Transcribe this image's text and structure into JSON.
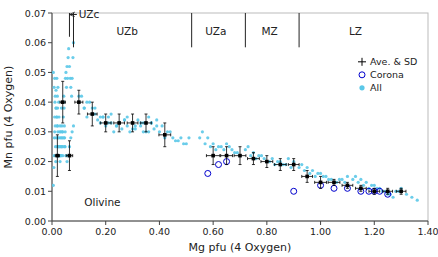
{
  "chart_data": {
    "type": "scatter",
    "x_label": "Mg pfu (4 Oxygen)",
    "y_label": "Mn pfu (4 Oxygen)",
    "xlim": [
      0,
      1.4
    ],
    "ylim": [
      0,
      0.07
    ],
    "xticks": [
      {
        "value": 0.0,
        "label": "0.00"
      },
      {
        "value": 0.2,
        "label": "0.20"
      },
      {
        "value": 0.4,
        "label": "0.40"
      },
      {
        "value": 0.6,
        "label": "0.60"
      },
      {
        "value": 0.8,
        "label": "0.80"
      },
      {
        "value": 1.0,
        "label": "1.00"
      },
      {
        "value": 1.2,
        "label": "1.20"
      },
      {
        "value": 1.4,
        "label": "1.40"
      }
    ],
    "yticks": [
      {
        "value": 0.0,
        "label": "0.00"
      },
      {
        "value": 0.01,
        "label": "0.01"
      },
      {
        "value": 0.02,
        "label": "0.02"
      },
      {
        "value": 0.03,
        "label": "0.03"
      },
      {
        "value": 0.04,
        "label": "0.04"
      },
      {
        "value": 0.05,
        "label": "0.05"
      },
      {
        "value": 0.06,
        "label": "0.06"
      },
      {
        "value": 0.07,
        "label": "0.07"
      }
    ],
    "grid": false,
    "legend": "upper right",
    "zone_boundaries": [
      0.08,
      0.52,
      0.72,
      0.92
    ],
    "zone_labels": [
      {
        "text": "UZb",
        "x": 0.28,
        "y": 0.06405
      },
      {
        "text": "UZa",
        "x": 0.61,
        "y": 0.06405
      },
      {
        "text": "MZ",
        "x": 0.81,
        "y": 0.06405
      },
      {
        "text": "LZ",
        "x": 1.13,
        "y": 0.06405
      }
    ],
    "annotations": [
      {
        "text": "UZc",
        "x": 0.1,
        "y": 0.0695,
        "arrow_x": 0.065,
        "arrow_y": 0.0695,
        "tick_y": [
          0.062,
          0.07
        ]
      },
      {
        "text": "Olivine",
        "x": 0.12,
        "y": 0.005
      }
    ],
    "series": [
      {
        "name": "Ave. & SD",
        "color": "black",
        "marker": "square",
        "x": [
          0.02,
          0.04,
          0.065,
          0.1,
          0.15,
          0.2,
          0.25,
          0.3,
          0.35,
          0.42,
          0.6,
          0.65,
          0.7,
          0.75,
          0.8,
          0.85,
          0.9,
          0.95,
          1.0,
          1.05,
          1.1,
          1.15,
          1.2,
          1.25,
          1.3
        ],
        "values": [
          0.022,
          0.04,
          0.022,
          0.04,
          0.036,
          0.033,
          0.033,
          0.033,
          0.033,
          0.029,
          0.022,
          0.022,
          0.022,
          0.021,
          0.02,
          0.019,
          0.019,
          0.015,
          0.013,
          0.013,
          0.012,
          0.011,
          0.01,
          0.01,
          0.01
        ],
        "x_err": [
          0.008,
          0.01,
          0.012,
          0.015,
          0.018,
          0.02,
          0.02,
          0.02,
          0.02,
          0.022,
          0.025,
          0.022,
          0.022,
          0.022,
          0.022,
          0.022,
          0.02,
          0.02,
          0.022,
          0.022,
          0.02,
          0.02,
          0.02,
          0.018,
          0.018
        ],
        "y_err": [
          0.007,
          0.007,
          0.005,
          0.004,
          0.004,
          0.003,
          0.003,
          0.003,
          0.003,
          0.004,
          0.003,
          0.003,
          0.003,
          0.002,
          0.002,
          0.002,
          0.002,
          0.002,
          0.002,
          0.001,
          0.001,
          0.001,
          0.001,
          0.001,
          0.001
        ]
      },
      {
        "name": "Corona",
        "color": "#0000cd",
        "marker": "open_circle",
        "x": [
          0.58,
          0.62,
          0.65,
          0.9,
          1.0,
          1.05,
          1.1,
          1.15,
          1.18,
          1.2,
          1.22,
          1.25
        ],
        "values": [
          0.016,
          0.019,
          0.02,
          0.01,
          0.012,
          0.011,
          0.011,
          0.01,
          0.01,
          0.01,
          0.01,
          0.009
        ]
      },
      {
        "name": "All",
        "color": "#5bc8e8",
        "marker": "circle",
        "x": [
          0.005,
          0.007,
          0.008,
          0.009,
          0.01,
          0.01,
          0.011,
          0.012,
          0.013,
          0.014,
          0.015,
          0.015,
          0.016,
          0.017,
          0.018,
          0.018,
          0.019,
          0.02,
          0.02,
          0.021,
          0.022,
          0.022,
          0.023,
          0.024,
          0.025,
          0.025,
          0.026,
          0.027,
          0.028,
          0.029,
          0.03,
          0.03,
          0.031,
          0.032,
          0.033,
          0.034,
          0.035,
          0.035,
          0.036,
          0.037,
          0.038,
          0.039,
          0.04,
          0.041,
          0.042,
          0.043,
          0.044,
          0.045,
          0.046,
          0.047,
          0.048,
          0.049,
          0.05,
          0.052,
          0.054,
          0.056,
          0.058,
          0.06,
          0.062,
          0.065,
          0.068,
          0.07,
          0.073,
          0.075,
          0.078,
          0.08,
          0.005,
          0.008,
          0.01,
          0.012,
          0.015,
          0.018,
          0.02,
          0.022,
          0.025,
          0.028,
          0.03,
          0.033,
          0.036,
          0.04,
          0.044,
          0.048,
          0.052,
          0.056,
          0.06,
          0.065,
          0.07,
          0.075,
          0.08,
          0.1,
          0.11,
          0.12,
          0.13,
          0.14,
          0.15,
          0.16,
          0.17,
          0.18,
          0.19,
          0.2,
          0.21,
          0.22,
          0.23,
          0.24,
          0.25,
          0.26,
          0.27,
          0.28,
          0.29,
          0.3,
          0.31,
          0.32,
          0.33,
          0.34,
          0.35,
          0.36,
          0.37,
          0.38,
          0.39,
          0.1,
          0.13,
          0.16,
          0.19,
          0.22,
          0.25,
          0.28,
          0.31,
          0.34,
          0.37,
          0.12,
          0.15,
          0.18,
          0.21,
          0.24,
          0.27,
          0.3,
          0.33,
          0.36,
          0.39,
          0.4,
          0.42,
          0.44,
          0.46,
          0.48,
          0.5,
          0.41,
          0.43,
          0.45,
          0.47,
          0.49,
          0.51,
          0.55,
          0.57,
          0.59,
          0.61,
          0.63,
          0.65,
          0.67,
          0.69,
          0.56,
          0.58,
          0.6,
          0.62,
          0.64,
          0.66,
          0.68,
          0.7,
          0.72,
          0.74,
          0.76,
          0.78,
          0.8,
          0.82,
          0.84,
          0.86,
          0.88,
          0.9,
          0.73,
          0.75,
          0.77,
          0.79,
          0.81,
          0.83,
          0.85,
          0.87,
          0.89,
          0.92,
          0.94,
          0.96,
          0.98,
          1.0,
          1.02,
          1.04,
          1.06,
          1.08,
          1.1,
          0.93,
          0.95,
          0.97,
          0.99,
          1.01,
          1.03,
          1.05,
          1.07,
          1.09,
          1.12,
          1.14,
          1.16,
          1.18,
          1.2,
          1.22,
          1.24,
          1.26,
          1.28,
          1.3,
          1.13,
          1.15,
          1.17,
          1.19,
          1.21,
          1.23,
          1.25,
          1.27,
          1.29,
          1.32,
          1.34,
          1.36
        ],
        "values": [
          0.012,
          0.018,
          0.022,
          0.028,
          0.03,
          0.035,
          0.04,
          0.032,
          0.025,
          0.02,
          0.038,
          0.044,
          0.028,
          0.022,
          0.035,
          0.048,
          0.025,
          0.042,
          0.032,
          0.038,
          0.045,
          0.03,
          0.025,
          0.022,
          0.04,
          0.028,
          0.035,
          0.022,
          0.025,
          0.03,
          0.032,
          0.022,
          0.028,
          0.025,
          0.03,
          0.022,
          0.038,
          0.028,
          0.025,
          0.032,
          0.03,
          0.028,
          0.022,
          0.025,
          0.035,
          0.04,
          0.042,
          0.038,
          0.032,
          0.028,
          0.025,
          0.03,
          0.048,
          0.05,
          0.045,
          0.052,
          0.048,
          0.055,
          0.058,
          0.052,
          0.048,
          0.045,
          0.042,
          0.048,
          0.055,
          0.06,
          0.05,
          0.045,
          0.048,
          0.042,
          0.038,
          0.035,
          0.032,
          0.028,
          0.025,
          0.022,
          0.02,
          0.022,
          0.025,
          0.03,
          0.028,
          0.025,
          0.022,
          0.02,
          0.022,
          0.025,
          0.028,
          0.03,
          0.032,
          0.04,
          0.042,
          0.038,
          0.035,
          0.04,
          0.038,
          0.036,
          0.034,
          0.033,
          0.035,
          0.032,
          0.035,
          0.033,
          0.03,
          0.032,
          0.033,
          0.031,
          0.034,
          0.032,
          0.03,
          0.033,
          0.031,
          0.034,
          0.032,
          0.033,
          0.03,
          0.035,
          0.033,
          0.031,
          0.034,
          0.042,
          0.04,
          0.038,
          0.035,
          0.036,
          0.033,
          0.035,
          0.032,
          0.03,
          0.033,
          0.038,
          0.036,
          0.035,
          0.033,
          0.032,
          0.034,
          0.031,
          0.033,
          0.03,
          0.032,
          0.03,
          0.028,
          0.03,
          0.027,
          0.028,
          0.026,
          0.032,
          0.03,
          0.028,
          0.027,
          0.026,
          0.028,
          0.028,
          0.026,
          0.025,
          0.024,
          0.025,
          0.026,
          0.024,
          0.023,
          0.03,
          0.028,
          0.026,
          0.025,
          0.024,
          0.025,
          0.023,
          0.022,
          0.024,
          0.022,
          0.021,
          0.022,
          0.02,
          0.021,
          0.02,
          0.019,
          0.021,
          0.02,
          0.025,
          0.023,
          0.022,
          0.021,
          0.02,
          0.019,
          0.02,
          0.019,
          0.018,
          0.018,
          0.017,
          0.016,
          0.015,
          0.016,
          0.015,
          0.014,
          0.013,
          0.014,
          0.015,
          0.019,
          0.018,
          0.017,
          0.016,
          0.015,
          0.014,
          0.013,
          0.014,
          0.013,
          0.014,
          0.013,
          0.012,
          0.011,
          0.012,
          0.011,
          0.01,
          0.009,
          0.01,
          0.011,
          0.015,
          0.014,
          0.013,
          0.012,
          0.011,
          0.01,
          0.009,
          0.008,
          0.01,
          0.009,
          0.008,
          0.007
        ]
      }
    ]
  }
}
